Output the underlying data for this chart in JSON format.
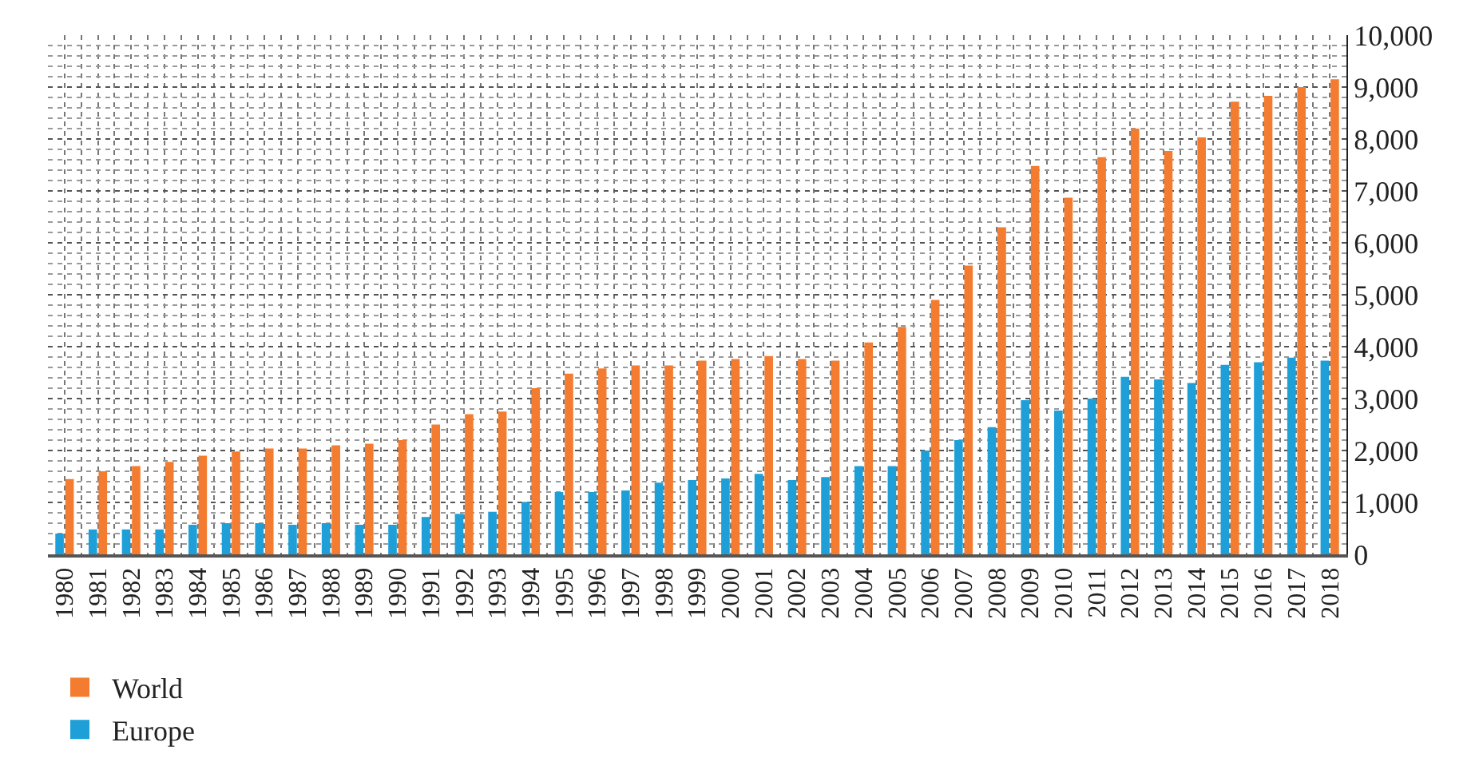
{
  "chart_data": {
    "type": "bar",
    "categories": [
      "1980",
      "1981",
      "1982",
      "1983",
      "1984",
      "1985",
      "1986",
      "1987",
      "1988",
      "1989",
      "1990",
      "1991",
      "1992",
      "1993",
      "1994",
      "1995",
      "1996",
      "1997",
      "1998",
      "1999",
      "2000",
      "2001",
      "2002",
      "2003",
      "2004",
      "2005",
      "2006",
      "2007",
      "2008",
      "2009",
      "2010",
      "2011",
      "2012",
      "2013",
      "2014",
      "2015",
      "2016",
      "2017",
      "2018"
    ],
    "series": [
      {
        "name": "Europe",
        "color": "#1f9fd8",
        "values": [
          400,
          480,
          480,
          480,
          570,
          600,
          600,
          570,
          600,
          570,
          570,
          720,
          780,
          820,
          1010,
          1200,
          1200,
          1230,
          1380,
          1430,
          1460,
          1550,
          1430,
          1490,
          1700,
          1700,
          2000,
          2200,
          2450,
          2970,
          2770,
          3000,
          3420,
          3370,
          3300,
          3650,
          3700,
          3790,
          3730
        ]
      },
      {
        "name": "World",
        "color": "#f47c30",
        "values": [
          1450,
          1600,
          1700,
          1780,
          1900,
          1980,
          2040,
          2040,
          2100,
          2130,
          2200,
          2500,
          2700,
          2750,
          3200,
          3480,
          3580,
          3640,
          3640,
          3730,
          3760,
          3820,
          3760,
          3730,
          4080,
          4380,
          4900,
          5560,
          6300,
          7480,
          6870,
          7650,
          8200,
          7770,
          8030,
          8720,
          8830,
          9000,
          9150
        ]
      }
    ],
    "ylim": [
      0,
      10000
    ],
    "yticks": [
      0,
      {
        "value": 1000,
        "label": "1,000"
      },
      {
        "value": 2000,
        "label": "2,000"
      },
      {
        "value": 3000,
        "label": "3,000"
      },
      {
        "value": 4000,
        "label": "4,000"
      },
      {
        "value": 5000,
        "label": "5,000"
      },
      {
        "value": 6000,
        "label": "6,000"
      },
      {
        "value": 7000,
        "label": "7,000"
      },
      {
        "value": 8000,
        "label": "8,000"
      },
      {
        "value": 9000,
        "label": "9,000"
      },
      {
        "value": 10000,
        "label": "10,000"
      }
    ],
    "grid": true,
    "legend": "bottom left"
  }
}
